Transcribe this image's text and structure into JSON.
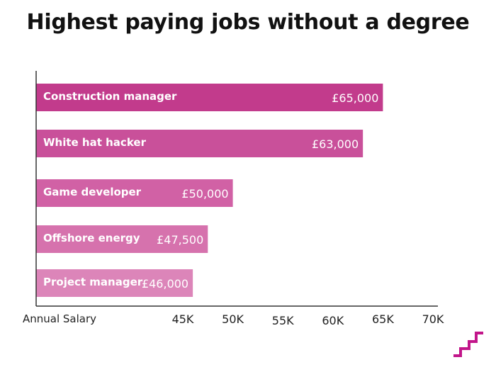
{
  "chart_data": {
    "type": "bar",
    "orientation": "horizontal",
    "title": "Highest paying jobs without a degree",
    "xlabel": "Annual Salary",
    "ylabel": "",
    "categories": [
      "Construction manager",
      "White hat hacker",
      "Game developer",
      "Offshore energy",
      "Project manager"
    ],
    "values": [
      65000,
      63000,
      50000,
      47500,
      46000
    ],
    "value_labels": [
      "£65,000",
      "£63,000",
      "£50,000",
      "£47,500",
      "£46,000"
    ],
    "x_ticks": [
      45000,
      50000,
      55000,
      60000,
      65000,
      70000
    ],
    "x_tick_labels": [
      "45K",
      "50K",
      "55K",
      "60K",
      "65K",
      "70K"
    ],
    "xlim": [
      33000,
      70000
    ],
    "grid": false,
    "bar_colors": [
      "#c23b8c",
      "#c9509a",
      "#d161a5",
      "#d672ad",
      "#dc85b9"
    ],
    "axis_color": "#333333"
  },
  "brand": {
    "icon": "stairs-logo-icon",
    "color": "#c2168a"
  }
}
